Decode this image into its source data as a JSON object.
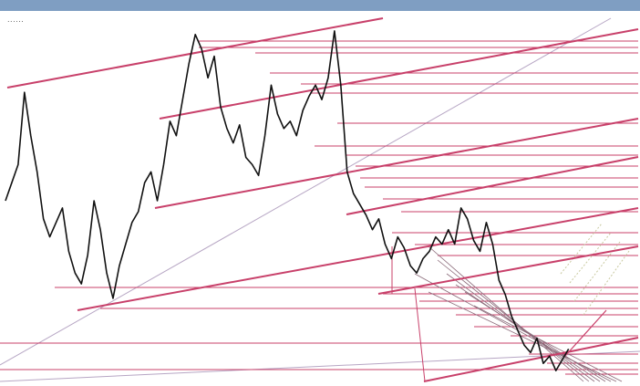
{
  "window": {
    "caption": "",
    "symbol_label": "......",
    "accent_color": "#7f9ec2"
  },
  "chart_data": {
    "type": "line",
    "title": "",
    "xlabel": "",
    "ylabel": "",
    "grid": false,
    "price_color": "#111111",
    "trendline_color": "#c8406a",
    "level_color": "#c8406a",
    "fan_color": "#8b6b7a",
    "guide_color": "#b7a6c4",
    "xlim": [
      0,
      100
    ],
    "ylim": [
      0,
      100
    ],
    "price_series": [
      [
        0,
        50
      ],
      [
        1,
        55
      ],
      [
        2,
        60
      ],
      [
        3,
        80
      ],
      [
        4,
        68
      ],
      [
        5,
        58
      ],
      [
        6,
        45
      ],
      [
        7,
        40
      ],
      [
        8,
        44
      ],
      [
        9,
        48
      ],
      [
        10,
        36
      ],
      [
        11,
        30
      ],
      [
        12,
        27
      ],
      [
        13,
        35
      ],
      [
        14,
        50
      ],
      [
        15,
        42
      ],
      [
        16,
        30
      ],
      [
        17,
        23
      ],
      [
        18,
        32
      ],
      [
        19,
        38
      ],
      [
        20,
        44
      ],
      [
        21,
        47
      ],
      [
        22,
        55
      ],
      [
        23,
        58
      ],
      [
        24,
        50
      ],
      [
        25,
        60
      ],
      [
        26,
        72
      ],
      [
        27,
        68
      ],
      [
        28,
        78
      ],
      [
        29,
        88
      ],
      [
        30,
        96
      ],
      [
        31,
        92
      ],
      [
        32,
        84
      ],
      [
        33,
        90
      ],
      [
        34,
        76
      ],
      [
        35,
        70
      ],
      [
        36,
        66
      ],
      [
        37,
        71
      ],
      [
        38,
        62
      ],
      [
        39,
        60
      ],
      [
        40,
        57
      ],
      [
        41,
        68
      ],
      [
        42,
        82
      ],
      [
        43,
        74
      ],
      [
        44,
        70
      ],
      [
        45,
        72
      ],
      [
        46,
        68
      ],
      [
        47,
        75
      ],
      [
        48,
        79
      ],
      [
        49,
        82
      ],
      [
        50,
        78
      ],
      [
        51,
        84
      ],
      [
        52,
        97
      ],
      [
        53,
        82
      ],
      [
        54,
        58
      ],
      [
        55,
        52
      ],
      [
        56,
        49
      ],
      [
        57,
        46
      ],
      [
        58,
        42
      ],
      [
        59,
        45
      ],
      [
        60,
        38
      ],
      [
        61,
        34
      ],
      [
        62,
        40
      ],
      [
        63,
        37
      ],
      [
        64,
        32
      ],
      [
        65,
        30
      ],
      [
        66,
        34
      ],
      [
        67,
        36
      ],
      [
        68,
        40
      ],
      [
        69,
        38
      ],
      [
        70,
        42
      ],
      [
        71,
        38
      ],
      [
        72,
        48
      ],
      [
        73,
        45
      ],
      [
        74,
        39
      ],
      [
        75,
        36
      ],
      [
        76,
        44
      ],
      [
        77,
        38
      ],
      [
        78,
        28
      ],
      [
        79,
        24
      ],
      [
        80,
        18
      ],
      [
        81,
        14
      ],
      [
        82,
        10
      ],
      [
        83,
        8
      ],
      [
        84,
        12
      ],
      [
        85,
        5
      ],
      [
        86,
        7
      ],
      [
        87,
        3
      ],
      [
        88,
        6
      ],
      [
        89,
        9
      ]
    ]
  }
}
